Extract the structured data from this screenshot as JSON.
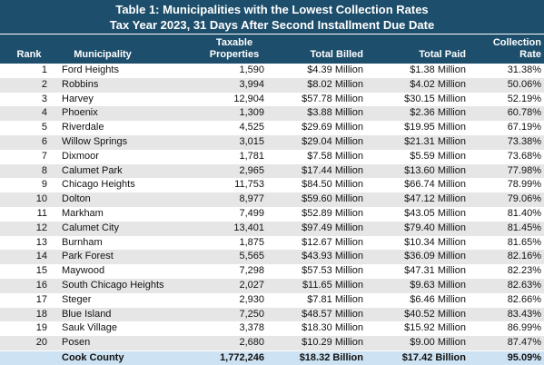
{
  "header": {
    "title": "Table 1: Municipalities with the Lowest Collection Rates",
    "subtitle": "Tax Year 2023, 31 Days After Second Installment Due Date"
  },
  "table": {
    "columns": [
      "Rank",
      "Municipality",
      "Taxable Properties",
      "Total Billed",
      "Total Paid",
      "Collection Rate"
    ],
    "rows": [
      [
        "1",
        "Ford Heights",
        "1,590",
        "$4.39 Million",
        "$1.38 Million",
        "31.38%"
      ],
      [
        "2",
        "Robbins",
        "3,994",
        "$8.02 Million",
        "$4.02 Million",
        "50.06%"
      ],
      [
        "3",
        "Harvey",
        "12,904",
        "$57.78 Million",
        "$30.15 Million",
        "52.19%"
      ],
      [
        "4",
        "Phoenix",
        "1,309",
        "$3.88 Million",
        "$2.36 Million",
        "60.78%"
      ],
      [
        "5",
        "Riverdale",
        "4,525",
        "$29.69 Million",
        "$19.95 Million",
        "67.19%"
      ],
      [
        "6",
        "Willow Springs",
        "3,015",
        "$29.04 Million",
        "$21.31 Million",
        "73.38%"
      ],
      [
        "7",
        "Dixmoor",
        "1,781",
        "$7.58 Million",
        "$5.59 Million",
        "73.68%"
      ],
      [
        "8",
        "Calumet Park",
        "2,965",
        "$17.44 Million",
        "$13.60 Million",
        "77.98%"
      ],
      [
        "9",
        "Chicago Heights",
        "11,753",
        "$84.50 Million",
        "$66.74 Million",
        "78.99%"
      ],
      [
        "10",
        "Dolton",
        "8,977",
        "$59.60 Million",
        "$47.12 Million",
        "79.06%"
      ],
      [
        "11",
        "Markham",
        "7,499",
        "$52.89 Million",
        "$43.05 Million",
        "81.40%"
      ],
      [
        "12",
        "Calumet City",
        "13,401",
        "$97.49 Million",
        "$79.40 Million",
        "81.45%"
      ],
      [
        "13",
        "Burnham",
        "1,875",
        "$12.67 Million",
        "$10.34 Million",
        "81.65%"
      ],
      [
        "14",
        "Park Forest",
        "5,565",
        "$43.93 Million",
        "$36.09 Million",
        "82.16%"
      ],
      [
        "15",
        "Maywood",
        "7,298",
        "$57.53 Million",
        "$47.31 Million",
        "82.23%"
      ],
      [
        "16",
        "South Chicago Heights",
        "2,027",
        "$11.65 Million",
        "$9.63 Million",
        "82.63%"
      ],
      [
        "17",
        "Steger",
        "2,930",
        "$7.81 Million",
        "$6.46 Million",
        "82.66%"
      ],
      [
        "18",
        "Blue Island",
        "7,250",
        "$48.57 Million",
        "$40.52 Million",
        "83.43%"
      ],
      [
        "19",
        "Sauk Village",
        "3,378",
        "$18.30 Million",
        "$15.92 Million",
        "86.99%"
      ],
      [
        "20",
        "Posen",
        "2,680",
        "$10.29 Million",
        "$9.00 Million",
        "87.47%"
      ]
    ],
    "total": [
      "Cook County",
      "1,772,246",
      "$18.32 Billion",
      "$17.42 Billion",
      "95.09%"
    ]
  }
}
